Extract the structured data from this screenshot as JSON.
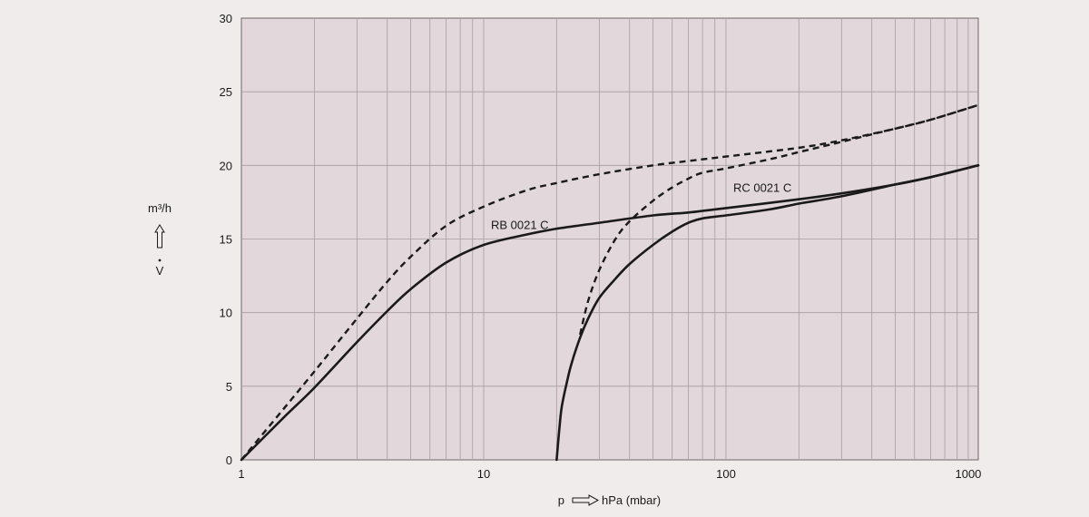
{
  "chart_data": {
    "type": "line",
    "x_scale": "log",
    "y_scale": "linear",
    "xlim": [
      1,
      1100
    ],
    "ylim": [
      0,
      30
    ],
    "x_ticks": [
      1,
      10,
      100,
      1000
    ],
    "x_tick_labels": [
      "1",
      "10",
      "100",
      "1000"
    ],
    "y_ticks": [
      0,
      5,
      10,
      15,
      20,
      25,
      30
    ],
    "y_tick_labels": [
      "0",
      "5",
      "10",
      "15",
      "20",
      "25",
      "30"
    ],
    "grid": true,
    "xlabel": "p",
    "xunit": "hPa (mbar)",
    "ylabel_unit": "m³/h",
    "ylabel_symbol": "V",
    "annotations": [
      {
        "text": "RB 0021 C",
        "x": 10,
        "y": 16
      },
      {
        "text": "RC 0021 C",
        "x": 100,
        "y": 18.5
      }
    ],
    "series": [
      {
        "style": "solid",
        "x": [
          1,
          1.5,
          2,
          3,
          4,
          5,
          7,
          10,
          15,
          20,
          30,
          50,
          70,
          100,
          200,
          300,
          500,
          700,
          1100
        ],
        "y": [
          0,
          2.9,
          4.9,
          8.0,
          10.1,
          11.6,
          13.4,
          14.6,
          15.3,
          15.7,
          16.1,
          16.6,
          16.8,
          17.1,
          17.7,
          18.1,
          18.7,
          19.2,
          20.0
        ]
      },
      {
        "style": "dashed",
        "x": [
          1,
          1.5,
          2,
          3,
          4,
          5,
          7,
          10,
          15,
          20,
          30,
          50,
          70,
          100,
          200,
          300,
          500,
          700,
          1100
        ],
        "y": [
          0,
          3.5,
          6.0,
          9.6,
          12.1,
          13.8,
          15.9,
          17.2,
          18.3,
          18.8,
          19.4,
          20.0,
          20.3,
          20.6,
          21.2,
          21.7,
          22.5,
          23.1,
          24.1
        ]
      },
      {
        "style": "solid",
        "x": [
          20,
          20.5,
          21,
          22,
          23,
          25,
          27,
          30,
          35,
          40,
          50,
          60,
          70,
          80,
          100,
          150,
          200,
          300,
          500,
          700,
          1100
        ],
        "y": [
          0,
          2.0,
          3.6,
          5.2,
          6.5,
          8.3,
          9.6,
          11.0,
          12.3,
          13.3,
          14.6,
          15.5,
          16.1,
          16.4,
          16.6,
          17.0,
          17.4,
          17.9,
          18.7,
          19.2,
          20.0
        ]
      },
      {
        "style": "dashed",
        "x": [
          25,
          27,
          30,
          35,
          40,
          50,
          60,
          70,
          80,
          100,
          150,
          200,
          300,
          500,
          700,
          1100
        ],
        "y": [
          8.5,
          10.8,
          12.9,
          15.0,
          16.2,
          17.6,
          18.5,
          19.1,
          19.5,
          19.8,
          20.4,
          20.9,
          21.6,
          22.5,
          23.1,
          24.1
        ]
      }
    ]
  }
}
